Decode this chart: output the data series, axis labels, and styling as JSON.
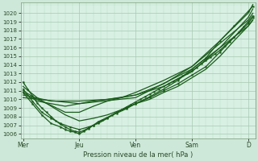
{
  "bg_color": "#cde8d8",
  "plot_bg_color": "#d8f0e4",
  "grid_color_major": "#a8c8b0",
  "grid_color_minor": "#b8d8c0",
  "line_color": "#1a5c1a",
  "marker_color": "#1a5c1a",
  "ylabel_text": "Pression niveau de la mer( hPa )",
  "ylim": [
    1005.5,
    1021.2
  ],
  "yticks": [
    1006,
    1007,
    1008,
    1009,
    1010,
    1011,
    1012,
    1013,
    1014,
    1015,
    1016,
    1017,
    1018,
    1019,
    1020
  ],
  "xtick_labels": [
    "Mer",
    "Jeu",
    "Ven",
    "Sam",
    "D"
  ],
  "xtick_positions": [
    0,
    24,
    48,
    72,
    96
  ],
  "xlim": [
    -1,
    99
  ],
  "figsize": [
    3.2,
    2.0
  ],
  "dpi": 100,
  "series": [
    {
      "x": [
        0,
        2,
        4,
        6,
        8,
        10,
        12,
        14,
        16,
        18,
        20,
        22,
        24,
        26,
        28,
        30,
        32,
        34,
        36,
        38,
        40,
        42,
        44,
        46,
        48,
        50,
        52,
        54,
        56,
        58,
        60,
        62,
        64,
        66,
        68,
        70,
        72,
        74,
        76,
        78,
        80,
        82,
        84,
        86,
        88,
        90,
        92,
        94,
        96,
        98
      ],
      "y": [
        1012.0,
        1011.2,
        1010.4,
        1009.6,
        1009.0,
        1008.5,
        1008.0,
        1007.5,
        1007.1,
        1006.8,
        1006.5,
        1006.3,
        1006.2,
        1006.4,
        1006.7,
        1007.0,
        1007.3,
        1007.6,
        1007.9,
        1008.2,
        1008.5,
        1008.8,
        1009.1,
        1009.4,
        1009.7,
        1010.0,
        1010.3,
        1010.6,
        1010.9,
        1011.2,
        1011.5,
        1011.8,
        1012.1,
        1012.4,
        1012.7,
        1013.0,
        1013.3,
        1013.7,
        1014.1,
        1014.5,
        1014.9,
        1015.3,
        1015.7,
        1016.2,
        1016.7,
        1017.2,
        1017.8,
        1018.4,
        1019.0,
        1019.7
      ],
      "lw": 0.9,
      "marker": true
    },
    {
      "x": [
        0,
        6,
        12,
        18,
        24,
        30,
        36,
        42,
        48,
        54,
        60,
        66,
        72,
        78,
        84,
        90,
        96,
        98
      ],
      "y": [
        1011.5,
        1010.2,
        1009.2,
        1008.2,
        1007.5,
        1007.8,
        1008.2,
        1008.8,
        1009.5,
        1010.0,
        1010.8,
        1011.5,
        1012.5,
        1013.5,
        1015.0,
        1016.8,
        1018.5,
        1019.2
      ],
      "lw": 0.9,
      "marker": false
    },
    {
      "x": [
        0,
        6,
        12,
        18,
        24,
        30,
        36,
        42,
        48,
        60,
        72,
        84,
        96,
        98
      ],
      "y": [
        1011.0,
        1010.0,
        1009.3,
        1008.5,
        1008.5,
        1009.2,
        1009.8,
        1010.2,
        1010.8,
        1012.2,
        1013.8,
        1016.5,
        1019.2,
        1020.0
      ],
      "lw": 0.9,
      "marker": false
    },
    {
      "x": [
        0,
        6,
        12,
        18,
        24,
        30,
        36,
        42,
        48,
        60,
        72,
        84,
        96,
        98
      ],
      "y": [
        1010.8,
        1009.8,
        1009.5,
        1009.2,
        1009.5,
        1009.8,
        1010.0,
        1010.2,
        1010.5,
        1011.5,
        1013.2,
        1016.0,
        1019.5,
        1020.5
      ],
      "lw": 0.9,
      "marker": false
    },
    {
      "x": [
        0,
        12,
        24,
        36,
        48,
        60,
        72,
        84,
        96,
        98
      ],
      "y": [
        1010.5,
        1009.8,
        1009.8,
        1010.0,
        1010.5,
        1011.8,
        1013.8,
        1016.8,
        1020.0,
        1021.0
      ],
      "lw": 0.9,
      "marker": false
    },
    {
      "x": [
        0,
        24,
        48,
        72,
        96,
        98
      ],
      "y": [
        1010.2,
        1009.5,
        1010.2,
        1013.5,
        1018.5,
        1019.2
      ],
      "lw": 0.9,
      "marker": false
    },
    {
      "x": [
        0,
        4,
        8,
        12,
        16,
        20,
        24,
        28,
        32,
        36,
        40,
        44,
        48,
        54,
        60,
        66,
        72,
        78,
        84,
        90,
        96,
        98
      ],
      "y": [
        1011.2,
        1009.8,
        1008.5,
        1007.8,
        1007.2,
        1006.8,
        1006.5,
        1006.8,
        1007.2,
        1007.8,
        1008.5,
        1009.0,
        1009.5,
        1010.2,
        1011.0,
        1011.8,
        1012.8,
        1013.8,
        1015.5,
        1017.2,
        1018.8,
        1019.5
      ],
      "lw": 0.9,
      "marker": true
    },
    {
      "x": [
        0,
        4,
        8,
        12,
        16,
        18,
        20,
        22,
        24,
        26,
        28,
        30,
        32,
        36,
        40,
        44,
        48,
        54,
        60,
        66,
        72,
        78,
        84,
        90,
        96,
        98
      ],
      "y": [
        1010.8,
        1009.5,
        1008.2,
        1007.2,
        1006.8,
        1006.5,
        1006.3,
        1006.2,
        1006.0,
        1006.3,
        1006.6,
        1007.0,
        1007.4,
        1007.9,
        1008.4,
        1008.9,
        1009.5,
        1010.3,
        1011.2,
        1012.2,
        1013.5,
        1014.8,
        1016.8,
        1018.5,
        1020.2,
        1020.8
      ],
      "lw": 0.9,
      "marker": true
    }
  ]
}
